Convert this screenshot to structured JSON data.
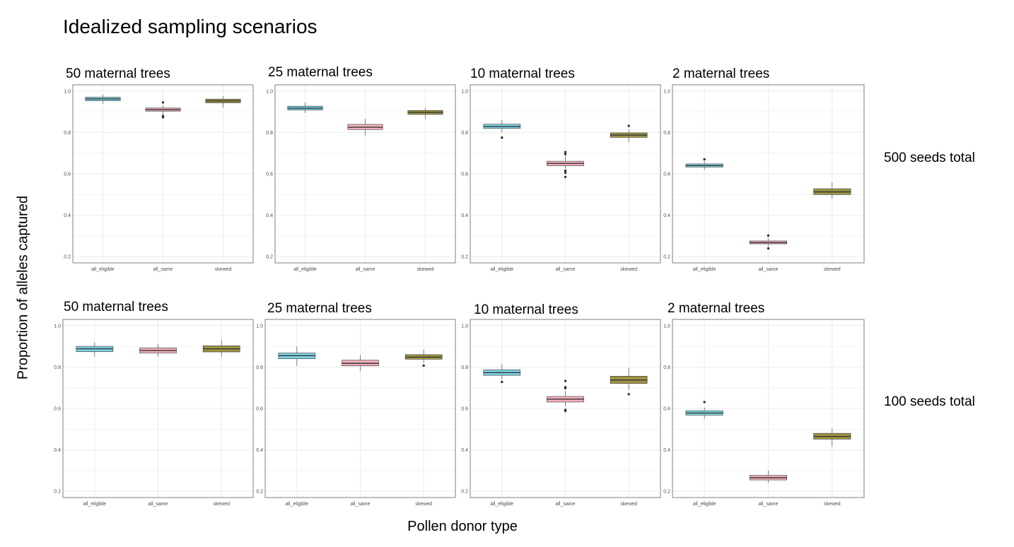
{
  "title": "Idealized sampling scenarios",
  "x_axis_title": "Pollen donor type",
  "y_axis_title": "Proportion of alleles captured",
  "row_labels": [
    "500 seeds total",
    "100 seeds total"
  ],
  "colors": {
    "all_eligible": "#7fd3e3",
    "all_same": "#f3b0bd",
    "skewed": "#9e9445",
    "grid": "#ebebeb",
    "border": "#7f7f7f",
    "tick_text": "#4d4d4d",
    "median": "#333333"
  },
  "chart_data": [
    {
      "type": "boxplot",
      "row": "500 seeds total",
      "title": "50 maternal trees",
      "categories": [
        "all_eligible",
        "all_same",
        "skewed"
      ],
      "ylim": [
        0.17,
        1.03
      ],
      "yticks": [
        0.2,
        0.4,
        0.6,
        0.8,
        1.0
      ],
      "grid": true,
      "boxes": [
        {
          "category": "all_eligible",
          "q1": 0.953,
          "median": 0.962,
          "q3": 0.97,
          "whisker_low": 0.938,
          "whisker_high": 0.983,
          "outliers": []
        },
        {
          "category": "all_same",
          "q1": 0.903,
          "median": 0.91,
          "q3": 0.918,
          "whisker_low": 0.89,
          "whisker_high": 0.93,
          "outliers": [
            0.945,
            0.88,
            0.873
          ]
        },
        {
          "category": "skewed",
          "q1": 0.943,
          "median": 0.952,
          "q3": 0.961,
          "whisker_low": 0.92,
          "whisker_high": 0.975,
          "outliers": []
        }
      ]
    },
    {
      "type": "boxplot",
      "row": "500 seeds total",
      "title": "25 maternal trees",
      "categories": [
        "all_eligible",
        "all_same",
        "skewed"
      ],
      "ylim": [
        0.17,
        1.03
      ],
      "yticks": [
        0.2,
        0.4,
        0.6,
        0.8,
        1.0
      ],
      "grid": true,
      "boxes": [
        {
          "category": "all_eligible",
          "q1": 0.908,
          "median": 0.917,
          "q3": 0.927,
          "whisker_low": 0.893,
          "whisker_high": 0.945,
          "outliers": []
        },
        {
          "category": "all_same",
          "q1": 0.814,
          "median": 0.825,
          "q3": 0.839,
          "whisker_low": 0.785,
          "whisker_high": 0.865,
          "outliers": []
        },
        {
          "category": "skewed",
          "q1": 0.887,
          "median": 0.897,
          "q3": 0.906,
          "whisker_low": 0.863,
          "whisker_high": 0.92,
          "outliers": []
        }
      ]
    },
    {
      "type": "boxplot",
      "row": "500 seeds total",
      "title": "10 maternal trees",
      "categories": [
        "all_eligible",
        "all_same",
        "skewed"
      ],
      "ylim": [
        0.17,
        1.03
      ],
      "yticks": [
        0.2,
        0.4,
        0.6,
        0.8,
        1.0
      ],
      "grid": true,
      "boxes": [
        {
          "category": "all_eligible",
          "q1": 0.819,
          "median": 0.829,
          "q3": 0.84,
          "whisker_low": 0.8,
          "whisker_high": 0.86,
          "outliers": [
            0.775
          ]
        },
        {
          "category": "all_same",
          "q1": 0.639,
          "median": 0.65,
          "q3": 0.661,
          "whisker_low": 0.625,
          "whisker_high": 0.685,
          "outliers": [
            0.705,
            0.695,
            0.615,
            0.605,
            0.585
          ]
        },
        {
          "category": "skewed",
          "q1": 0.776,
          "median": 0.787,
          "q3": 0.798,
          "whisker_low": 0.75,
          "whisker_high": 0.815,
          "outliers": [
            0.832
          ]
        }
      ]
    },
    {
      "type": "boxplot",
      "row": "500 seeds total",
      "title": "2 maternal trees",
      "categories": [
        "all_eligible",
        "all_same",
        "skewed"
      ],
      "ylim": [
        0.17,
        1.03
      ],
      "yticks": [
        0.2,
        0.4,
        0.6,
        0.8,
        1.0
      ],
      "grid": true,
      "boxes": [
        {
          "category": "all_eligible",
          "q1": 0.633,
          "median": 0.64,
          "q3": 0.648,
          "whisker_low": 0.62,
          "whisker_high": 0.66,
          "outliers": [
            0.67
          ]
        },
        {
          "category": "all_same",
          "q1": 0.262,
          "median": 0.268,
          "q3": 0.276,
          "whisker_low": 0.25,
          "whisker_high": 0.29,
          "outliers": [
            0.302,
            0.24
          ]
        },
        {
          "category": "skewed",
          "q1": 0.5,
          "median": 0.513,
          "q3": 0.528,
          "whisker_low": 0.48,
          "whisker_high": 0.558,
          "outliers": []
        }
      ]
    },
    {
      "type": "boxplot",
      "row": "100 seeds total",
      "title": "50 maternal trees",
      "categories": [
        "all_eligible",
        "all_same",
        "skewed"
      ],
      "ylim": [
        0.17,
        1.03
      ],
      "yticks": [
        0.2,
        0.4,
        0.6,
        0.8,
        1.0
      ],
      "grid": true,
      "boxes": [
        {
          "category": "all_eligible",
          "q1": 0.874,
          "median": 0.888,
          "q3": 0.9,
          "whisker_low": 0.85,
          "whisker_high": 0.92,
          "outliers": []
        },
        {
          "category": "all_same",
          "q1": 0.868,
          "median": 0.88,
          "q3": 0.893,
          "whisker_low": 0.852,
          "whisker_high": 0.91,
          "outliers": []
        },
        {
          "category": "skewed",
          "q1": 0.873,
          "median": 0.888,
          "q3": 0.903,
          "whisker_low": 0.85,
          "whisker_high": 0.93,
          "outliers": []
        }
      ]
    },
    {
      "type": "boxplot",
      "row": "100 seeds total",
      "title": "25 maternal trees",
      "categories": [
        "all_eligible",
        "all_same",
        "skewed"
      ],
      "ylim": [
        0.17,
        1.03
      ],
      "yticks": [
        0.2,
        0.4,
        0.6,
        0.8,
        1.0
      ],
      "grid": true,
      "boxes": [
        {
          "category": "all_eligible",
          "q1": 0.84,
          "median": 0.855,
          "q3": 0.868,
          "whisker_low": 0.805,
          "whisker_high": 0.9,
          "outliers": []
        },
        {
          "category": "all_same",
          "q1": 0.806,
          "median": 0.818,
          "q3": 0.833,
          "whisker_low": 0.78,
          "whisker_high": 0.858,
          "outliers": []
        },
        {
          "category": "skewed",
          "q1": 0.838,
          "median": 0.848,
          "q3": 0.86,
          "whisker_low": 0.82,
          "whisker_high": 0.885,
          "outliers": [
            0.807
          ]
        }
      ]
    },
    {
      "type": "boxplot",
      "row": "100 seeds total",
      "title": "10 maternal trees",
      "categories": [
        "all_eligible",
        "all_same",
        "skewed"
      ],
      "ylim": [
        0.17,
        1.03
      ],
      "yticks": [
        0.2,
        0.4,
        0.6,
        0.8,
        1.0
      ],
      "grid": true,
      "boxes": [
        {
          "category": "all_eligible",
          "q1": 0.76,
          "median": 0.773,
          "q3": 0.787,
          "whisker_low": 0.74,
          "whisker_high": 0.815,
          "outliers": [
            0.728
          ]
        },
        {
          "category": "all_same",
          "q1": 0.631,
          "median": 0.645,
          "q3": 0.658,
          "whisker_low": 0.61,
          "whisker_high": 0.685,
          "outliers": [
            0.733,
            0.703,
            0.698,
            0.593,
            0.588
          ]
        },
        {
          "category": "skewed",
          "q1": 0.721,
          "median": 0.737,
          "q3": 0.756,
          "whisker_low": 0.69,
          "whisker_high": 0.795,
          "outliers": [
            0.669
          ]
        }
      ]
    },
    {
      "type": "boxplot",
      "row": "100 seeds total",
      "title": "2 maternal trees",
      "categories": [
        "all_eligible",
        "all_same",
        "skewed"
      ],
      "ylim": [
        0.17,
        1.03
      ],
      "yticks": [
        0.2,
        0.4,
        0.6,
        0.8,
        1.0
      ],
      "grid": true,
      "boxes": [
        {
          "category": "all_eligible",
          "q1": 0.568,
          "median": 0.578,
          "q3": 0.589,
          "whisker_low": 0.55,
          "whisker_high": 0.605,
          "outliers": [
            0.631
          ]
        },
        {
          "category": "all_same",
          "q1": 0.255,
          "median": 0.266,
          "q3": 0.277,
          "whisker_low": 0.24,
          "whisker_high": 0.3,
          "outliers": []
        },
        {
          "category": "skewed",
          "q1": 0.452,
          "median": 0.465,
          "q3": 0.48,
          "whisker_low": 0.415,
          "whisker_high": 0.503,
          "outliers": []
        }
      ]
    }
  ]
}
